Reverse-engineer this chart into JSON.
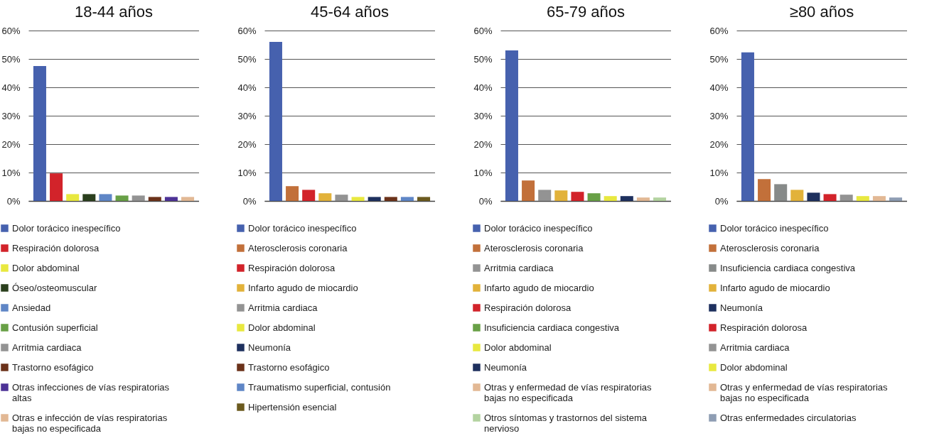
{
  "chart_data": [
    {
      "type": "bar",
      "title": "18-44 años",
      "categories": [
        null,
        null,
        null,
        null,
        null,
        null,
        null,
        null,
        null,
        null
      ],
      "series": [
        {
          "name": "Dolor torácico inespecífico",
          "color": "#4661ae",
          "values": [
            47.5,
            null,
            null,
            null,
            null,
            null,
            null,
            null,
            null,
            null
          ]
        },
        {
          "name": "Respiración dolorosa",
          "color": "#d2232a",
          "values": [
            null,
            9.7,
            null,
            null,
            null,
            null,
            null,
            null,
            null,
            null
          ]
        },
        {
          "name": "Dolor abdominal",
          "color": "#e8e83f",
          "values": [
            null,
            null,
            2.4,
            null,
            null,
            null,
            null,
            null,
            null,
            null
          ]
        },
        {
          "name": "Óseo/osteomuscular",
          "color": "#2a3f1d",
          "values": [
            null,
            null,
            null,
            2.4,
            null,
            null,
            null,
            null,
            null,
            null
          ]
        },
        {
          "name": "Ansiedad",
          "color": "#5f86c6",
          "values": [
            null,
            null,
            null,
            null,
            2.4,
            null,
            null,
            null,
            null,
            null
          ]
        },
        {
          "name": "Contusión superficial",
          "color": "#68a046",
          "values": [
            null,
            null,
            null,
            null,
            null,
            1.9,
            null,
            null,
            null,
            null
          ]
        },
        {
          "name": "Arritmia cardiaca",
          "color": "#939393",
          "values": [
            null,
            null,
            null,
            null,
            null,
            null,
            1.9,
            null,
            null,
            null
          ]
        },
        {
          "name": "Trastorno esofágico",
          "color": "#6b321a",
          "values": [
            null,
            null,
            null,
            null,
            null,
            null,
            null,
            1.4,
            null,
            null
          ]
        },
        {
          "name": "Otras infecciones de vías respiratorias altas",
          "color": "#4d3296",
          "values": [
            null,
            null,
            null,
            null,
            null,
            null,
            null,
            null,
            1.4,
            null
          ]
        },
        {
          "name": "Otras e infección de vías respiratorias bajas no especificada",
          "color": "#e2b894",
          "values": [
            null,
            null,
            null,
            null,
            null,
            null,
            null,
            null,
            null,
            1.4
          ]
        }
      ],
      "ylim": [
        0,
        60
      ],
      "yticks": [
        {
          "value": 0,
          "label": "0%"
        },
        {
          "value": 10,
          "label": "10%"
        },
        {
          "value": 20,
          "label": "20%"
        },
        {
          "value": 30,
          "label": "30%"
        },
        {
          "value": 40,
          "label": "40%"
        },
        {
          "value": 50,
          "label": "50%"
        },
        {
          "value": 60,
          "label": "60%"
        }
      ],
      "grid": "y",
      "legend": "bottom",
      "tick_labels": "y"
    },
    {
      "type": "bar",
      "title": "45-64 años",
      "categories": [
        null,
        null,
        null,
        null,
        null,
        null,
        null,
        null,
        null,
        null
      ],
      "series": [
        {
          "name": "Dolor torácico inespecífico",
          "color": "#4661ae",
          "values": [
            56,
            null,
            null,
            null,
            null,
            null,
            null,
            null,
            null,
            null
          ]
        },
        {
          "name": "Aterosclerosis coronaria",
          "color": "#c2703a",
          "values": [
            null,
            5.2,
            null,
            null,
            null,
            null,
            null,
            null,
            null,
            null
          ]
        },
        {
          "name": "Respiración dolorosa",
          "color": "#d2232a",
          "values": [
            null,
            null,
            3.9,
            null,
            null,
            null,
            null,
            null,
            null,
            null
          ]
        },
        {
          "name": "Infarto agudo de miocardio",
          "color": "#e2b23a",
          "values": [
            null,
            null,
            null,
            2.7,
            null,
            null,
            null,
            null,
            null,
            null
          ]
        },
        {
          "name": "Arritmia cardiaca",
          "color": "#939393",
          "values": [
            null,
            null,
            null,
            null,
            2.2,
            null,
            null,
            null,
            null,
            null
          ]
        },
        {
          "name": "Dolor abdominal",
          "color": "#e8e83f",
          "values": [
            null,
            null,
            null,
            null,
            null,
            1.4,
            null,
            null,
            null,
            null
          ]
        },
        {
          "name": "Neumonía",
          "color": "#1e305e",
          "values": [
            null,
            null,
            null,
            null,
            null,
            null,
            1.4,
            null,
            null,
            null
          ]
        },
        {
          "name": "Trastorno esofágico",
          "color": "#6b321a",
          "values": [
            null,
            null,
            null,
            null,
            null,
            null,
            null,
            1.4,
            null,
            null
          ]
        },
        {
          "name": "Traumatismo superficial, contusión",
          "color": "#5f86c6",
          "values": [
            null,
            null,
            null,
            null,
            null,
            null,
            null,
            null,
            1.4,
            null
          ]
        },
        {
          "name": "Hipertensión esencial",
          "color": "#6b5a1e",
          "values": [
            null,
            null,
            null,
            null,
            null,
            null,
            null,
            null,
            null,
            1.4
          ]
        }
      ],
      "ylim": [
        0,
        60
      ],
      "yticks": [
        {
          "value": 0,
          "label": "0%"
        },
        {
          "value": 10,
          "label": "10%"
        },
        {
          "value": 20,
          "label": "20%"
        },
        {
          "value": 30,
          "label": "30%"
        },
        {
          "value": 40,
          "label": "40%"
        },
        {
          "value": 50,
          "label": "50%"
        },
        {
          "value": 60,
          "label": "60%"
        }
      ],
      "grid": "y",
      "legend": "bottom",
      "tick_labels": "y"
    },
    {
      "type": "bar",
      "title": "65-79 años",
      "categories": [
        null,
        null,
        null,
        null,
        null,
        null,
        null,
        null,
        null,
        null
      ],
      "series": [
        {
          "name": "Dolor torácico inespecífico",
          "color": "#4661ae",
          "values": [
            53,
            null,
            null,
            null,
            null,
            null,
            null,
            null,
            null,
            null
          ]
        },
        {
          "name": "Aterosclerosis coronaria",
          "color": "#c2703a",
          "values": [
            null,
            7.2,
            null,
            null,
            null,
            null,
            null,
            null,
            null,
            null
          ]
        },
        {
          "name": "Arritmia cardiaca",
          "color": "#939393",
          "values": [
            null,
            null,
            3.9,
            null,
            null,
            null,
            null,
            null,
            null,
            null
          ]
        },
        {
          "name": "Infarto agudo de miocardio",
          "color": "#e2b23a",
          "values": [
            null,
            null,
            null,
            3.7,
            null,
            null,
            null,
            null,
            null,
            null
          ]
        },
        {
          "name": "Respiración dolorosa",
          "color": "#d2232a",
          "values": [
            null,
            null,
            null,
            null,
            3.2,
            null,
            null,
            null,
            null,
            null
          ]
        },
        {
          "name": "Insuficiencia cardiaca congestiva",
          "color": "#68a046",
          "values": [
            null,
            null,
            null,
            null,
            null,
            2.7,
            null,
            null,
            null,
            null
          ]
        },
        {
          "name": "Dolor abdominal",
          "color": "#e8e83f",
          "values": [
            null,
            null,
            null,
            null,
            null,
            null,
            1.7,
            null,
            null,
            null
          ]
        },
        {
          "name": "Neumonía",
          "color": "#1e305e",
          "values": [
            null,
            null,
            null,
            null,
            null,
            null,
            null,
            1.7,
            null,
            null
          ]
        },
        {
          "name": "Otras y enfermedad de vías respiratorias bajas no especificada",
          "color": "#e2b894",
          "values": [
            null,
            null,
            null,
            null,
            null,
            null,
            null,
            null,
            1.2,
            null
          ]
        },
        {
          "name": "Otros síntomas y trastornos del sistema nervioso",
          "color": "#b3d3a0",
          "values": [
            null,
            null,
            null,
            null,
            null,
            null,
            null,
            null,
            null,
            1.2
          ]
        }
      ],
      "ylim": [
        0,
        60
      ],
      "yticks": [
        {
          "value": 0,
          "label": "0%"
        },
        {
          "value": 10,
          "label": "10%"
        },
        {
          "value": 20,
          "label": "20%"
        },
        {
          "value": 30,
          "label": "30%"
        },
        {
          "value": 40,
          "label": "40%"
        },
        {
          "value": 50,
          "label": "50%"
        },
        {
          "value": 60,
          "label": "60%"
        }
      ],
      "grid": "y",
      "legend": "bottom",
      "tick_labels": "y"
    },
    {
      "type": "bar",
      "title": "≥80 años",
      "categories": [
        null,
        null,
        null,
        null,
        null,
        null,
        null,
        null,
        null,
        null
      ],
      "series": [
        {
          "name": "Dolor torácico inespecífico",
          "color": "#4661ae",
          "values": [
            52.3,
            null,
            null,
            null,
            null,
            null,
            null,
            null,
            null,
            null
          ]
        },
        {
          "name": "Aterosclerosis coronaria",
          "color": "#c2703a",
          "values": [
            null,
            7.7,
            null,
            null,
            null,
            null,
            null,
            null,
            null,
            null
          ]
        },
        {
          "name": "Insuficiencia cardiaca congestiva",
          "color": "#878a89",
          "values": [
            null,
            null,
            5.9,
            null,
            null,
            null,
            null,
            null,
            null,
            null
          ]
        },
        {
          "name": "Infarto agudo de miocardio",
          "color": "#e2b23a",
          "values": [
            null,
            null,
            null,
            3.9,
            null,
            null,
            null,
            null,
            null,
            null
          ]
        },
        {
          "name": "Neumonía",
          "color": "#1e305e",
          "values": [
            null,
            null,
            null,
            null,
            2.9,
            null,
            null,
            null,
            null,
            null
          ]
        },
        {
          "name": "Respiración dolorosa",
          "color": "#d2232a",
          "values": [
            null,
            null,
            null,
            null,
            null,
            2.4,
            null,
            null,
            null,
            null
          ]
        },
        {
          "name": "Arritmia cardiaca",
          "color": "#939393",
          "values": [
            null,
            null,
            null,
            null,
            null,
            null,
            2.2,
            null,
            null,
            null
          ]
        },
        {
          "name": "Dolor abdominal",
          "color": "#e8e83f",
          "values": [
            null,
            null,
            null,
            null,
            null,
            null,
            null,
            1.7,
            null,
            null
          ]
        },
        {
          "name": "Otras y enfermedad de vías respiratorias bajas no especificada",
          "color": "#e2b894",
          "values": [
            null,
            null,
            null,
            null,
            null,
            null,
            null,
            null,
            1.7,
            null
          ]
        },
        {
          "name": "Otras enfermedades circulatorias",
          "color": "#8e9db3",
          "values": [
            null,
            null,
            null,
            null,
            null,
            null,
            null,
            null,
            null,
            1.2
          ]
        }
      ],
      "ylim": [
        0,
        60
      ],
      "yticks": [
        {
          "value": 0,
          "label": "0%"
        },
        {
          "value": 10,
          "label": "10%"
        },
        {
          "value": 20,
          "label": "20%"
        },
        {
          "value": 30,
          "label": "30%"
        },
        {
          "value": 40,
          "label": "40%"
        },
        {
          "value": 50,
          "label": "50%"
        },
        {
          "value": 60,
          "label": "60%"
        }
      ],
      "grid": "y",
      "legend": "bottom",
      "tick_labels": "y"
    }
  ]
}
